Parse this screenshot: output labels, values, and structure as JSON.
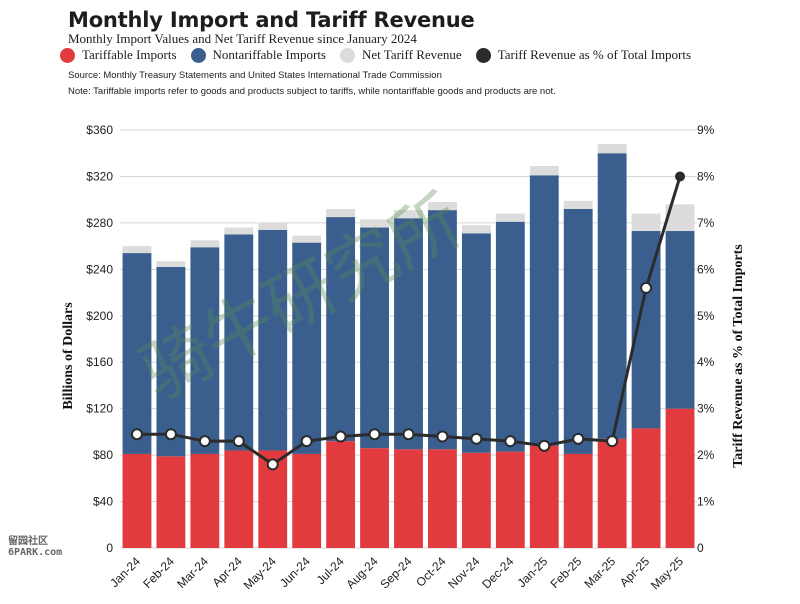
{
  "title": "Monthly Import and Tariff Revenue",
  "subtitle": "Monthly Import Values and Net Tariff Revenue since January 2024",
  "legend": [
    {
      "label": "Tariffable Imports",
      "color": "#e23b3f"
    },
    {
      "label": "Nontariffable Imports",
      "color": "#3a5f8f"
    },
    {
      "label": "Net Tariff Revenue",
      "color": "#dcdcdc"
    },
    {
      "label": "Tariff Revenue as % of Total Imports",
      "color": "#2b2b2b"
    }
  ],
  "source": "Source: Monthly Treasury Statements and United States International Trade Commission",
  "note": "Note: Tariffable imports refer to goods and products subject to tariffs, while nontariffable goods and products are not.",
  "watermark": "骑牛研究所",
  "corner_text": [
    "留园社区",
    "6PARK.com"
  ],
  "chart_data": {
    "type": "bar",
    "stacked": true,
    "categories": [
      "Jan-24",
      "Feb-24",
      "Mar-24",
      "Apr-24",
      "May-24",
      "Jun-24",
      "Jul-24",
      "Aug-24",
      "Sep-24",
      "Oct-24",
      "Nov-24",
      "Dec-24",
      "Jan-25",
      "Feb-25",
      "Mar-25",
      "Apr-25",
      "May-25"
    ],
    "series": [
      {
        "name": "Tariffable Imports",
        "color": "#e23b3f",
        "values": [
          81,
          79,
          81,
          84,
          84,
          81,
          92,
          86,
          85,
          85,
          82,
          83,
          88,
          81,
          94,
          103,
          120
        ]
      },
      {
        "name": "Nontariffable Imports",
        "color": "#3a5f8f",
        "values": [
          173,
          163,
          178,
          186,
          190,
          182,
          193,
          190,
          199,
          206,
          189,
          198,
          233,
          211,
          246,
          170,
          153
        ]
      },
      {
        "name": "Net Tariff Revenue",
        "color": "#dcdcdc",
        "values": [
          6,
          5,
          6,
          6,
          6,
          6,
          7,
          7,
          7,
          7,
          7,
          7,
          8,
          7,
          8,
          15,
          23
        ]
      }
    ],
    "line": {
      "name": "Tariff Revenue as % of Total Imports",
      "color": "#2b2b2b",
      "values": [
        2.45,
        2.45,
        2.3,
        2.3,
        1.8,
        2.3,
        2.4,
        2.45,
        2.45,
        2.4,
        2.35,
        2.3,
        2.2,
        2.35,
        2.3,
        5.6,
        8.0
      ]
    },
    "ylabel": "Billions of Dollars",
    "y2label": "Tariff Revenue as % of Total Imports",
    "ylim": [
      0,
      360
    ],
    "y2lim": [
      0,
      9
    ],
    "yticks": [
      "0",
      "$40",
      "$80",
      "$120",
      "$160",
      "$200",
      "$240",
      "$280",
      "$320",
      "$360"
    ],
    "y2ticks": [
      "0",
      "1%",
      "2%",
      "3%",
      "4%",
      "5%",
      "6%",
      "7%",
      "8%",
      "9%"
    ],
    "grid": true
  }
}
